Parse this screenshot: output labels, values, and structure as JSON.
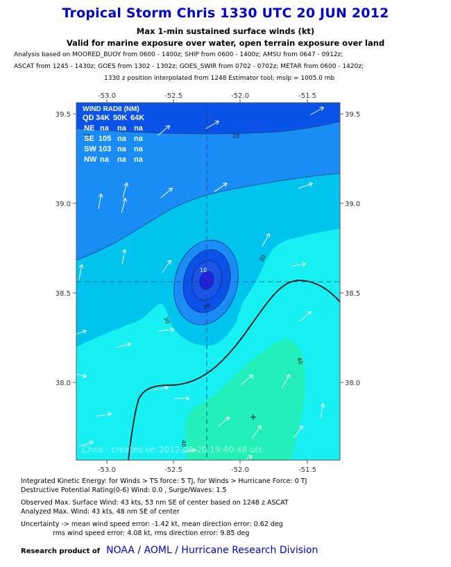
{
  "title": "Tropical Storm Chris 1330 UTC 20 JUN 2012",
  "subtitle1": "Max 1-min sustained surface winds (kt)",
  "subtitle2": "Valid for marine exposure over water, open terrain exposure over land",
  "analysis_lines": [
    "Analysis based on MOORED_BUOY from 0600 - 1400z; SHIP from 0600 - 1400z; AMSU from 0647 - 0912z;",
    "ASCAT from 1245 - 1430z; GOES from 1302 - 1302z; GOES_SWIR from 0702 - 0702z; METAR from 0600 - 1420z;",
    "1330 z position interpolated from 1248 Estimator tool; mslp = 1005.0 mb"
  ],
  "map": {
    "lon_ticks": [
      "-53.0",
      "-52.5",
      "-52.0",
      "-51.5"
    ],
    "lat_ticks": [
      "39.5",
      "39.0",
      "38.5",
      "38.0"
    ],
    "contour_labels": [
      "20",
      "20",
      "30",
      "30",
      "10",
      "20",
      "40",
      "40"
    ],
    "watermark": "Chris - created on 2012-06-20 19:40:48 utc",
    "colors": {
      "band_10": "#0a52e8",
      "band_20": "#1a8cf5",
      "band_30": "#00c3ee",
      "band_40": "#16f0f2",
      "band_50": "#22f0b8",
      "center_inner": "#2222dd",
      "tick_text": "#333333"
    }
  },
  "wind_radii": {
    "title": "WIND RADII (NM)",
    "header": [
      "QD",
      "34K",
      "50K",
      "64K"
    ],
    "rows": [
      [
        "NE",
        "na",
        "na",
        "na"
      ],
      [
        "SE",
        "105",
        "na",
        "na"
      ],
      [
        "SW",
        "103",
        "na",
        "na"
      ],
      [
        "NW",
        "na",
        "na",
        "na"
      ]
    ]
  },
  "info": {
    "ike": "Integrated Kinetic Energy: for Winds > TS force: 5 TJ, for Winds > Hurricane Force: 0 TJ",
    "dpr": "Destructive Potential Rating(0-6)   Wind: 0.0 , Surge/Waves: 1.5",
    "obs_max": "Observed Max. Surface Wind: 43 kts, 53 nm SE of center based on 1248 z ASCAT",
    "anl_max": "Analyzed Max. Wind: 43 kts, 48 nm  SE of center",
    "unc1": "Uncertainty -> mean wind speed error:  -1.42 kt, mean direction error: 0.62 deg",
    "unc2": "rms wind speed error: 4.08 kt, rms direction error: 9.85 deg"
  },
  "footer": {
    "label": "Research product of",
    "org": "NOAA  /  AOML  /  Hurricane Research Division"
  }
}
